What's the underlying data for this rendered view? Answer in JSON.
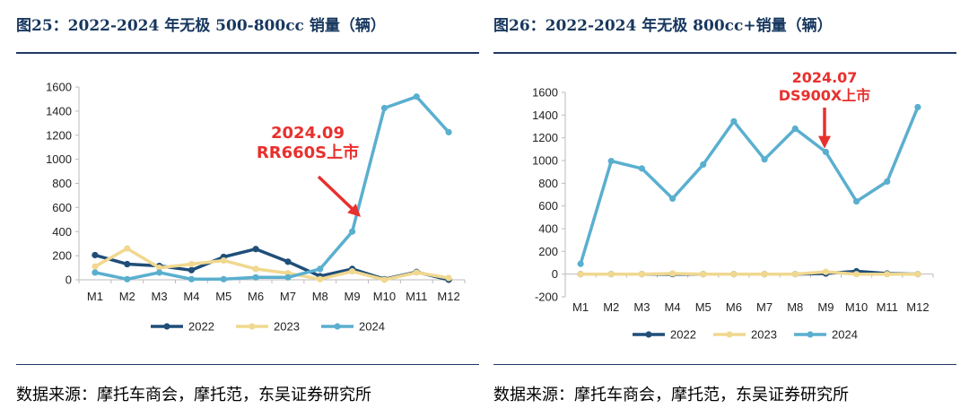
{
  "colors": {
    "s2022": "#1f4e79",
    "s2023": "#f0d890",
    "s2024": "#5aafcf",
    "annotation": "#e8302e",
    "title": "#17375e"
  },
  "charts": [
    {
      "title": "图25：2022-2024 年无极 500-800cc 销量（辆）",
      "source": "数据来源：摩托车商会，摩托范，东吴证券研究所",
      "annotation": {
        "line1": "2024.09",
        "line2": "RR660S上市"
      }
    },
    {
      "title": "图26：2022-2024 年无极 800cc+销量（辆）",
      "source": "数据来源：摩托车商会，摩托范，东吴证券研究所",
      "annotation": {
        "line1": "2024.07",
        "line2": "DS900X上市"
      }
    }
  ],
  "chart_data": [
    {
      "type": "line",
      "title": "图25：2022-2024 年无极 500-800cc 销量（辆）",
      "categories": [
        "M1",
        "M2",
        "M3",
        "M4",
        "M5",
        "M6",
        "M7",
        "M8",
        "M9",
        "M10",
        "M11",
        "M12"
      ],
      "ylim": [
        0,
        1600
      ],
      "yticks": [
        "0",
        "200",
        "400",
        "600",
        "800",
        "1000",
        "1200",
        "1400",
        "1600"
      ],
      "grid": false,
      "legend": "bottom",
      "series": [
        {
          "name": "2022",
          "values": [
            205,
            130,
            115,
            80,
            190,
            255,
            150,
            30,
            90,
            5,
            65,
            0
          ]
        },
        {
          "name": "2023",
          "values": [
            110,
            260,
            100,
            130,
            160,
            90,
            55,
            5,
            70,
            0,
            60,
            15
          ]
        },
        {
          "name": "2024",
          "values": [
            60,
            5,
            60,
            5,
            5,
            20,
            20,
            90,
            400,
            1425,
            1520,
            1225
          ]
        }
      ]
    },
    {
      "type": "line",
      "title": "图26：2022-2024 年无极 800cc+销量（辆）",
      "categories": [
        "M1",
        "M2",
        "M3",
        "M4",
        "M5",
        "M6",
        "M7",
        "M8",
        "M9",
        "M10",
        "M11",
        "M12"
      ],
      "ylim": [
        -200,
        1600
      ],
      "yticks": [
        "-200",
        "0",
        "200",
        "400",
        "600",
        "800",
        "1000",
        "1200",
        "1400",
        "1600"
      ],
      "grid": false,
      "legend": "bottom",
      "series": [
        {
          "name": "2022",
          "values": [
            0,
            0,
            0,
            0,
            0,
            0,
            0,
            0,
            5,
            25,
            5,
            0
          ]
        },
        {
          "name": "2023",
          "values": [
            0,
            0,
            0,
            5,
            0,
            0,
            0,
            0,
            20,
            0,
            0,
            0
          ]
        },
        {
          "name": "2024",
          "values": [
            90,
            995,
            930,
            665,
            965,
            1345,
            1010,
            1280,
            1075,
            640,
            815,
            1470
          ]
        }
      ]
    }
  ]
}
